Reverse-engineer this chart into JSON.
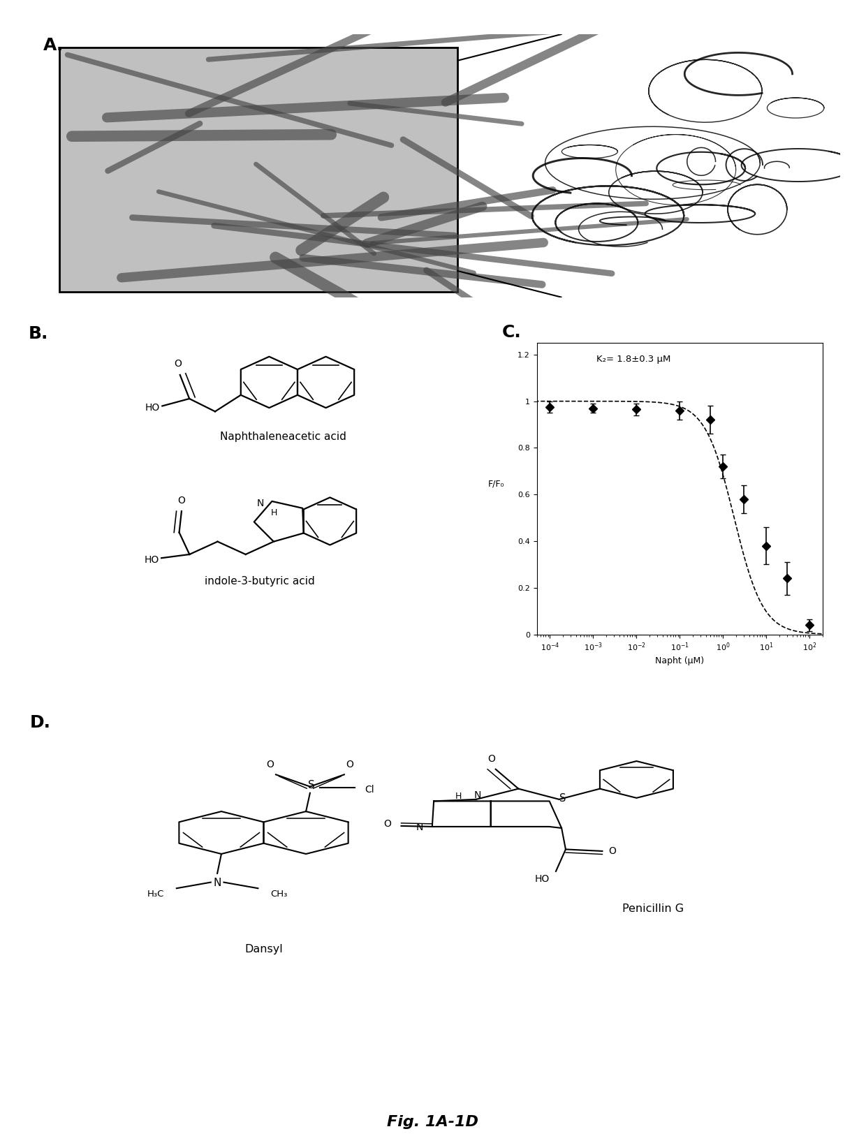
{
  "panel_labels": [
    "A.",
    "B.",
    "C.",
    "D."
  ],
  "panel_label_fontsize": 18,
  "panel_label_weight": "bold",
  "background_color": "#ffffff",
  "figure_title": "Fig. 1A-1D",
  "figure_title_fontsize": 16,
  "figure_title_style": "italic",
  "figure_title_weight": "bold",
  "C_xlabel": "Napht (μM)",
  "C_ylabel": "F/F₀",
  "C_annotation": "K₂= 1.8±0.3 μM",
  "C_xdata": [
    0.0001,
    0.001,
    0.01,
    0.1,
    0.5,
    1.0,
    3.0,
    10.0,
    30.0,
    100.0
  ],
  "C_ydata": [
    0.975,
    0.97,
    0.965,
    0.96,
    0.92,
    0.72,
    0.58,
    0.38,
    0.24,
    0.04
  ],
  "C_yerr": [
    0.025,
    0.02,
    0.025,
    0.04,
    0.06,
    0.05,
    0.06,
    0.08,
    0.07,
    0.025
  ],
  "C_ylim": [
    0.0,
    1.25
  ],
  "C_yticks": [
    0,
    0.2,
    0.4,
    0.6,
    0.8,
    1.0,
    1.2
  ],
  "C_ytick_labels": [
    "0",
    "0.2",
    "0.4",
    "0.6",
    "0.8",
    "1",
    "1.2"
  ],
  "naph_label": "Naphthaleneacetic acid",
  "indole_label": "indole-3-butyric acid",
  "dansyl_label": "Dansyl",
  "penicillin_label": "Penicillin G",
  "fiber_box_color": "#bbbbbb",
  "line_color": "#000000"
}
